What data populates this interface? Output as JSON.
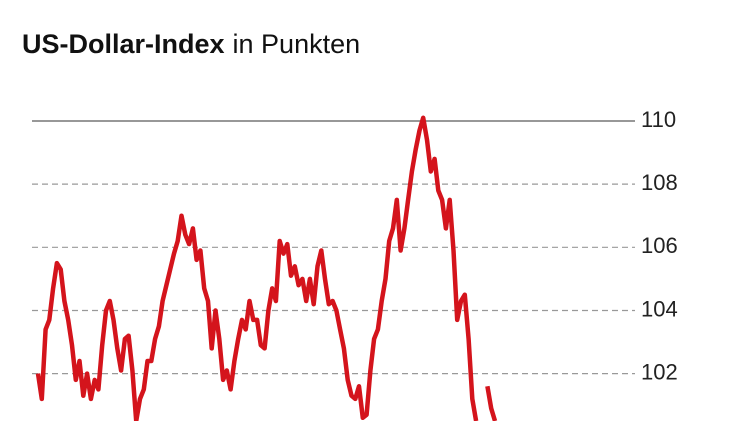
{
  "chart_data": {
    "type": "line",
    "title": "US-Dollar-Index",
    "subtitle": "in Punkten",
    "ylim": [
      100.5,
      111
    ],
    "yticks": [
      102,
      104,
      106,
      108,
      110
    ],
    "grid": true,
    "series": [
      {
        "color": "#d4141c",
        "values": [
          102.0,
          101.2,
          103.4,
          103.7,
          104.7,
          105.5,
          105.3,
          104.3,
          103.7,
          102.9,
          101.8,
          102.4,
          101.3,
          102.0,
          101.2,
          101.8,
          101.5,
          102.9,
          104.0,
          104.3,
          103.7,
          102.8,
          102.1,
          103.1,
          103.2,
          102.1,
          100.5,
          101.2,
          101.5,
          102.4,
          102.4,
          103.1,
          103.5,
          104.3,
          104.8,
          105.3,
          105.8,
          106.2,
          107.0,
          106.4,
          106.1,
          106.6,
          105.6,
          105.9,
          104.7,
          104.3,
          102.8,
          104.0,
          103.1,
          101.8,
          102.1,
          101.5,
          102.4,
          103.1,
          103.7,
          103.4,
          104.3,
          103.7,
          103.7,
          102.9,
          102.8,
          104.0,
          104.7,
          104.3,
          106.2,
          105.8,
          106.1,
          105.1,
          105.4,
          104.8,
          105.0,
          104.3,
          105.0,
          104.2,
          105.4,
          105.9,
          105.0,
          104.2,
          104.3,
          104.0,
          103.4,
          102.8,
          101.8,
          101.3,
          101.2,
          101.6,
          100.6,
          100.7,
          102.1,
          103.1,
          103.4,
          104.3,
          105.0,
          106.2,
          106.6,
          107.5,
          105.9,
          106.6,
          107.5,
          108.4,
          109.1,
          109.7,
          110.1,
          109.4,
          108.4,
          108.8,
          107.8,
          107.5,
          106.6,
          107.5,
          105.9,
          103.7,
          104.3,
          104.5,
          103.1,
          101.2,
          100.5,
          null,
          null,
          101.6,
          100.9,
          100.5
        ]
      }
    ]
  }
}
